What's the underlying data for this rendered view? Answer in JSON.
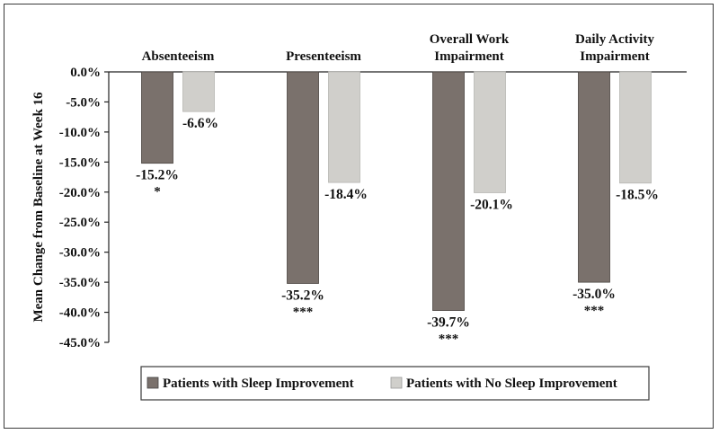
{
  "chart_data": {
    "type": "bar",
    "categories": [
      [
        "Absenteeism"
      ],
      [
        "Presenteeism"
      ],
      [
        "Overall Work",
        "Impairment"
      ],
      [
        "Daily Activity",
        "Impairment"
      ]
    ],
    "series": [
      {
        "name": "Patients with Sleep Improvement",
        "color": "#7a716c",
        "values": [
          -15.2,
          -35.2,
          -39.7,
          -35.0
        ],
        "labels": [
          "-15.2%",
          "-35.2%",
          "-39.7%",
          "-35.0%"
        ],
        "significance": [
          "*",
          "***",
          "***",
          "***"
        ]
      },
      {
        "name": "Patients with No Sleep Improvement",
        "color": "#d0cfcb",
        "values": [
          -6.6,
          -18.4,
          -20.1,
          -18.5
        ],
        "labels": [
          "-6.6%",
          "-18.4%",
          "-20.1%",
          "-18.5%"
        ],
        "significance": [
          "",
          "",
          "",
          ""
        ]
      }
    ],
    "ylabel": "Mean Change from Baseline at Week 16",
    "xlabel": "",
    "ylim": [
      -45,
      0
    ],
    "yticks": [
      0,
      -5,
      -10,
      -15,
      -20,
      -25,
      -30,
      -35,
      -40,
      -45
    ],
    "ytick_labels": [
      "0.0%",
      "-5.0%",
      "-10.0%",
      "-15.0%",
      "-20.0%",
      "-25.0%",
      "-30.0%",
      "-35.0%",
      "-40.0%",
      "-45.0%"
    ],
    "grid": false,
    "legend_position": "bottom"
  }
}
